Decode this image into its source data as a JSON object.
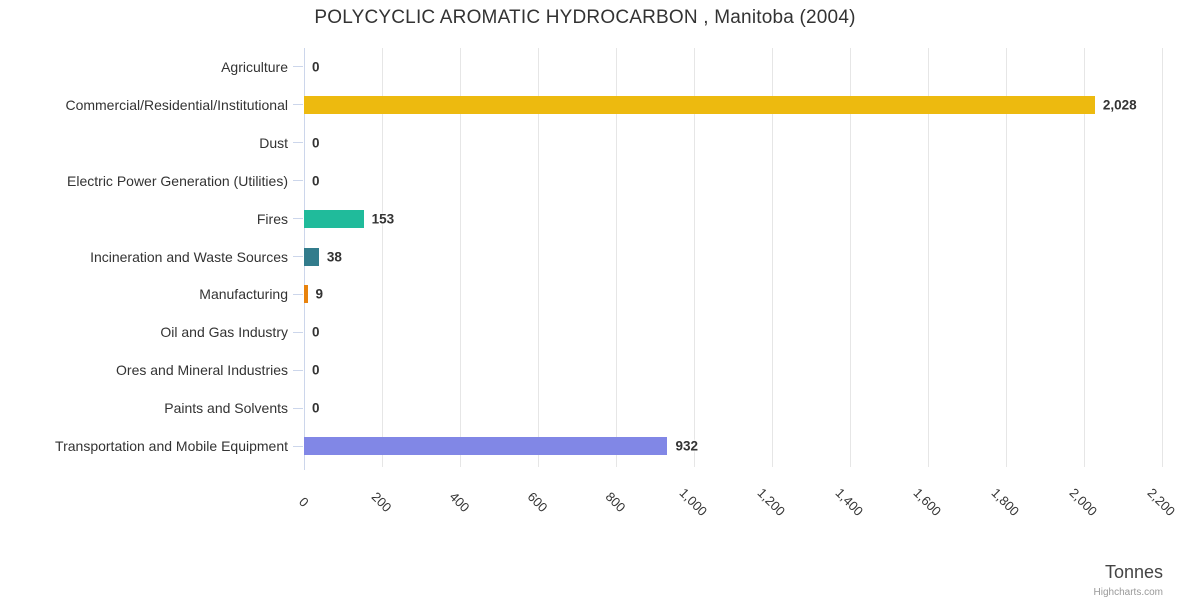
{
  "title": "POLYCYCLIC AROMATIC HYDROCARBON , Manitoba (2004)",
  "credits": "Highcharts.com",
  "chart_data": {
    "type": "bar",
    "orientation": "horizontal",
    "title": "POLYCYCLIC AROMATIC HYDROCARBON , Manitoba (2004)",
    "categories": [
      "Agriculture",
      "Commercial/Residential/Institutional",
      "Dust",
      "Electric Power Generation (Utilities)",
      "Fires",
      "Incineration and Waste Sources",
      "Manufacturing",
      "Oil and Gas Industry",
      "Ores and Mineral Industries",
      "Paints and Solvents",
      "Transportation and Mobile Equipment"
    ],
    "values": [
      0,
      2028,
      0,
      0,
      153,
      38,
      9,
      0,
      0,
      0,
      932
    ],
    "value_labels": [
      "0",
      "2,028",
      "0",
      "0",
      "153",
      "38",
      "9",
      "0",
      "0",
      "0",
      "932"
    ],
    "bar_colors": [
      null,
      "#EDBA0F",
      null,
      null,
      "#20BB9B",
      "#327C8C",
      "#E8830D",
      null,
      null,
      null,
      "#8187E6"
    ],
    "xlabel": "Tonnes",
    "ylabel": "",
    "xlim": [
      0,
      2200
    ],
    "x_ticks": [
      0,
      200,
      400,
      600,
      800,
      1000,
      1200,
      1400,
      1600,
      1800,
      2000,
      2200
    ],
    "x_tick_labels": [
      "0",
      "200",
      "400",
      "600",
      "800",
      "1,000",
      "1,200",
      "1,400",
      "1,600",
      "1,800",
      "2,000",
      "2,200"
    ],
    "grid": true,
    "legend": false,
    "background_color": "#ffffff",
    "text_color": "#333333",
    "axis_line_color": "#ccd6eb",
    "gridline_color": "#e6e6e6"
  }
}
